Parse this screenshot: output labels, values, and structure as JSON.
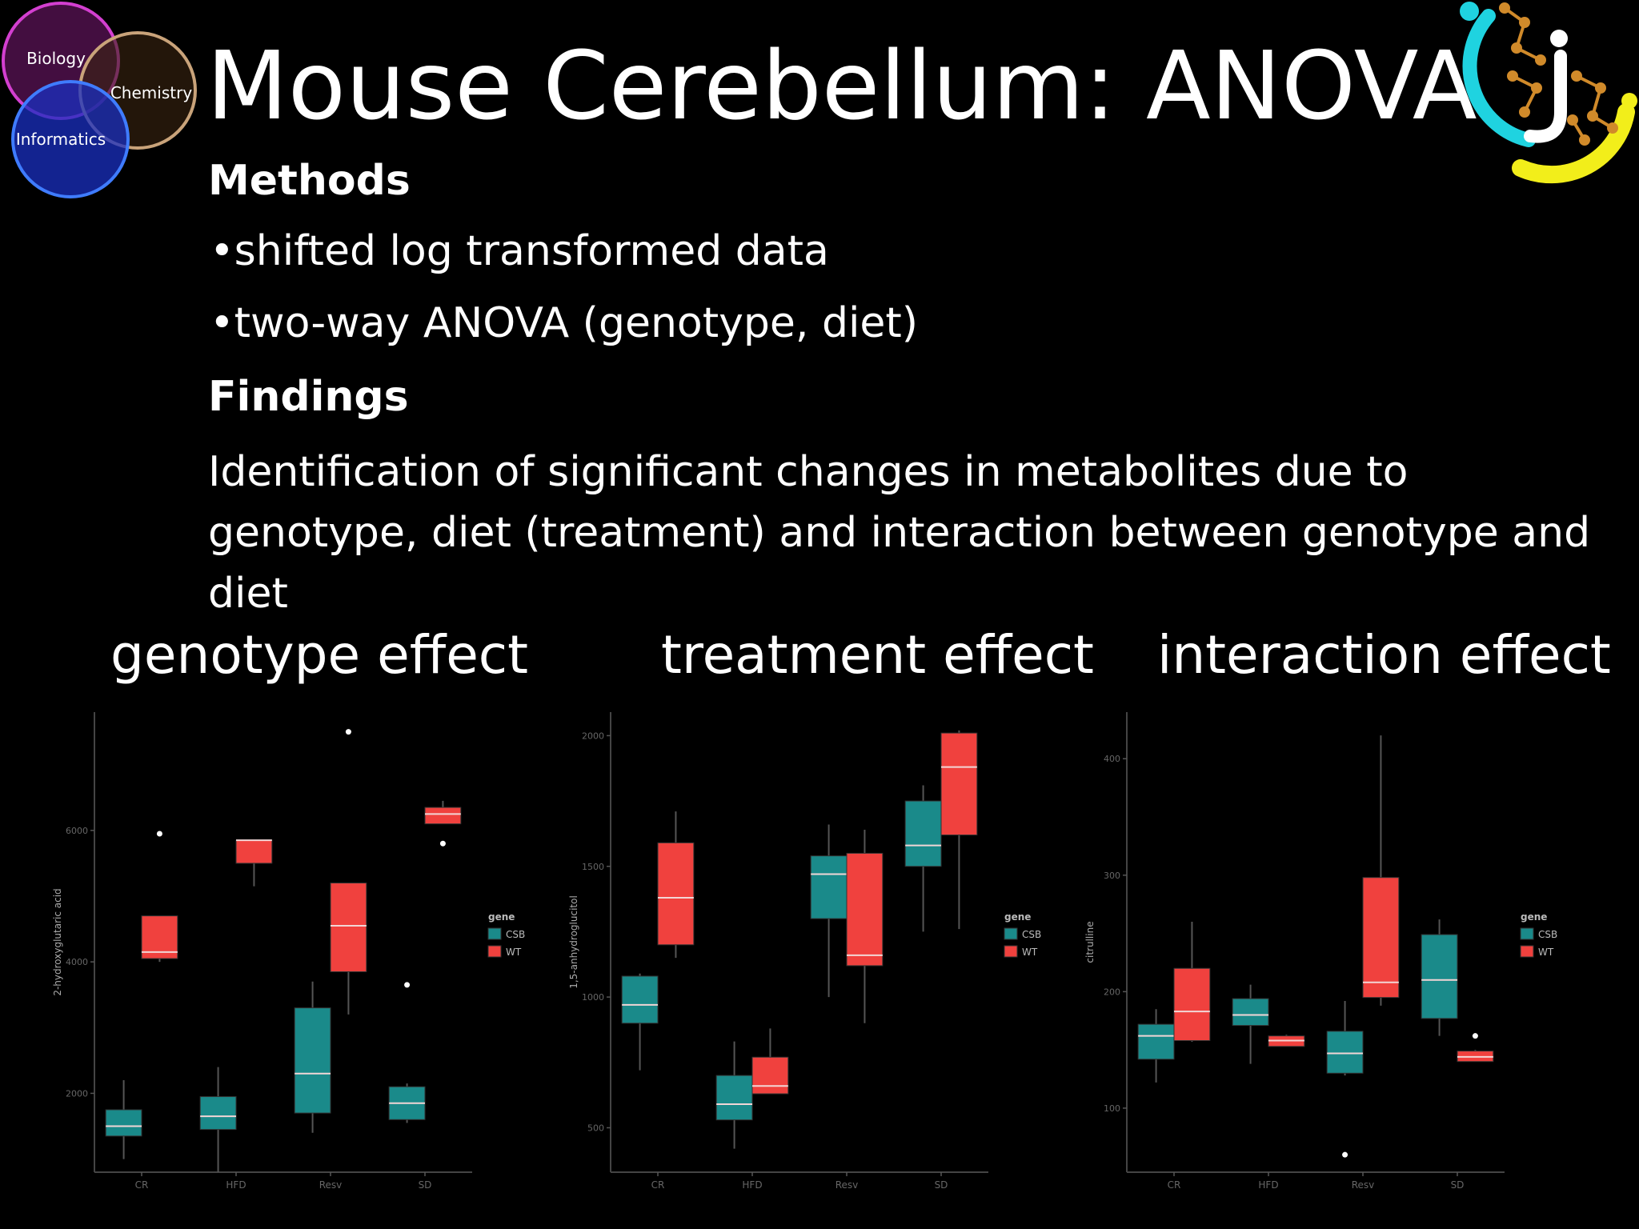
{
  "title": "Mouse Cerebellum: ANOVA",
  "venn_logo": {
    "circles": [
      "Biology",
      "Chemistry",
      "Informatics"
    ]
  },
  "corner_logo": {
    "icon": "molecule-logo-icon"
  },
  "methods": {
    "heading": "Methods",
    "bullets": [
      "•shifted log transformed data",
      "•two-way ANOVA (genotype, diet)"
    ]
  },
  "findings": {
    "heading": "Findings",
    "text": "Identification of significant changes in metabolites due to genotype, diet (treatment) and interaction between genotype and diet"
  },
  "panel_titles": [
    "genotype effect",
    "treatment effect",
    "interaction effect"
  ],
  "colors": {
    "CSB": "#1a8a8a",
    "WT": "#f0413e",
    "background": "#000000",
    "median": "#f2d6d6"
  },
  "chart_data": [
    {
      "type": "box",
      "ylabel": "2-hydroxyglutaric acid",
      "categories": [
        "CR",
        "HFD",
        "Resv",
        "SD"
      ],
      "yticks": [
        2000,
        4000,
        6000
      ],
      "ylim": [
        800,
        7800
      ],
      "legend": {
        "title": "gene",
        "entries": [
          "CSB",
          "WT"
        ]
      },
      "series": [
        {
          "name": "CSB",
          "boxes": [
            {
              "low": 1000,
              "q1": 1350,
              "median": 1500,
              "q3": 1750,
              "high": 2200,
              "outliers": []
            },
            {
              "low": 800,
              "q1": 1450,
              "median": 1650,
              "q3": 1950,
              "high": 2400,
              "outliers": []
            },
            {
              "low": 1400,
              "q1": 1700,
              "median": 2300,
              "q3": 3300,
              "high": 3700,
              "outliers": []
            },
            {
              "low": 1550,
              "q1": 1600,
              "median": 1850,
              "q3": 2100,
              "high": 2150,
              "outliers": [
                3650
              ]
            }
          ]
        },
        {
          "name": "WT",
          "boxes": [
            {
              "low": 4000,
              "q1": 4050,
              "median": 4150,
              "q3": 4700,
              "high": 4700,
              "outliers": [
                5950
              ]
            },
            {
              "low": 5150,
              "q1": 5500,
              "median": 5850,
              "q3": 5850,
              "high": 5850,
              "outliers": []
            },
            {
              "low": 3200,
              "q1": 3850,
              "median": 4550,
              "q3": 5200,
              "high": 5200,
              "outliers": [
                7500
              ]
            },
            {
              "low": 6100,
              "q1": 6100,
              "median": 6250,
              "q3": 6350,
              "high": 6450,
              "outliers": [
                5800
              ]
            }
          ]
        }
      ]
    },
    {
      "type": "box",
      "ylabel": "1,5-anhydroglucitol",
      "categories": [
        "CR",
        "HFD",
        "Resv",
        "SD"
      ],
      "yticks": [
        500,
        1000,
        1500,
        2000
      ],
      "ylim": [
        330,
        2090
      ],
      "legend": {
        "title": "gene",
        "entries": [
          "CSB",
          "WT"
        ]
      },
      "series": [
        {
          "name": "CSB",
          "boxes": [
            {
              "low": 720,
              "q1": 900,
              "median": 970,
              "q3": 1080,
              "high": 1090,
              "outliers": []
            },
            {
              "low": 420,
              "q1": 530,
              "median": 590,
              "q3": 700,
              "high": 830,
              "outliers": []
            },
            {
              "low": 1000,
              "q1": 1300,
              "median": 1470,
              "q3": 1540,
              "high": 1660,
              "outliers": []
            },
            {
              "low": 1250,
              "q1": 1500,
              "median": 1580,
              "q3": 1750,
              "high": 1810,
              "outliers": []
            }
          ]
        },
        {
          "name": "WT",
          "boxes": [
            {
              "low": 1150,
              "q1": 1200,
              "median": 1380,
              "q3": 1590,
              "high": 1710,
              "outliers": []
            },
            {
              "low": 630,
              "q1": 630,
              "median": 660,
              "q3": 770,
              "high": 880,
              "outliers": []
            },
            {
              "low": 900,
              "q1": 1120,
              "median": 1160,
              "q3": 1550,
              "high": 1640,
              "outliers": []
            },
            {
              "low": 1260,
              "q1": 1620,
              "median": 1880,
              "q3": 2010,
              "high": 2020,
              "outliers": []
            }
          ]
        }
      ]
    },
    {
      "type": "box",
      "ylabel": "citrulline",
      "categories": [
        "CR",
        "HFD",
        "Resv",
        "SD"
      ],
      "yticks": [
        100,
        200,
        300,
        400
      ],
      "ylim": [
        45,
        440
      ],
      "legend": {
        "title": "gene",
        "entries": [
          "CSB",
          "WT"
        ]
      },
      "series": [
        {
          "name": "CSB",
          "boxes": [
            {
              "low": 122,
              "q1": 142,
              "median": 162,
              "q3": 172,
              "high": 185,
              "outliers": []
            },
            {
              "low": 138,
              "q1": 171,
              "median": 180,
              "q3": 194,
              "high": 206,
              "outliers": []
            },
            {
              "low": 128,
              "q1": 130,
              "median": 147,
              "q3": 166,
              "high": 192,
              "outliers": [
                60
              ]
            },
            {
              "low": 162,
              "q1": 177,
              "median": 210,
              "q3": 249,
              "high": 262,
              "outliers": []
            }
          ]
        },
        {
          "name": "WT",
          "boxes": [
            {
              "low": 157,
              "q1": 158,
              "median": 183,
              "q3": 220,
              "high": 260,
              "outliers": []
            },
            {
              "low": 153,
              "q1": 153,
              "median": 158,
              "q3": 162,
              "high": 163,
              "outliers": []
            },
            {
              "low": 188,
              "q1": 195,
              "median": 208,
              "q3": 298,
              "high": 420,
              "outliers": []
            },
            {
              "low": 140,
              "q1": 140,
              "median": 144,
              "q3": 149,
              "high": 150,
              "outliers": [
                162
              ]
            }
          ]
        }
      ]
    }
  ]
}
